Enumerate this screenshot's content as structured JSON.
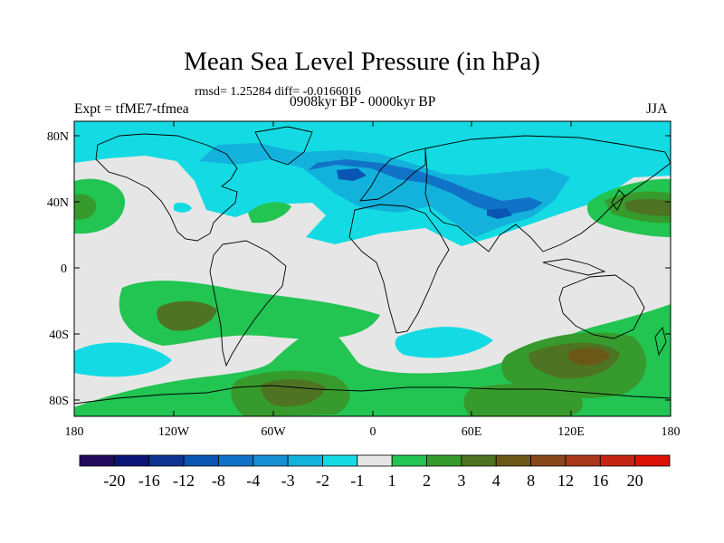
{
  "title": "Mean Sea Level Pressure (in hPa)",
  "stats": "rmsd= 1.25284 diff= -0.0166016",
  "period": "0908kyr BP - 0000kyr BP",
  "experiment": "Expt = tfME7-tfmea",
  "season": "JJA",
  "axes": {
    "lat_labels": [
      "80N",
      "40N",
      "0",
      "40S",
      "80S"
    ],
    "lon_labels": [
      "180",
      "120W",
      "60W",
      "0",
      "60E",
      "120E",
      "180"
    ]
  },
  "colorbar": {
    "labels": [
      "-20",
      "-16",
      "-12",
      "-8",
      "-4",
      "-3",
      "-2",
      "-1",
      "1",
      "2",
      "3",
      "4",
      "8",
      "12",
      "16",
      "20"
    ],
    "colors": [
      "#230a5c",
      "#0c1478",
      "#0e3391",
      "#0a54b3",
      "#1073c8",
      "#158fd4",
      "#12b2dc",
      "#14dbe3",
      "#e6e6e6",
      "#22c452",
      "#379a2c",
      "#4e7322",
      "#6b5817",
      "#88471b",
      "#a8381a",
      "#c42412",
      "#dc1208"
    ]
  },
  "colors": {
    "background_field": "#e6e6e6",
    "neg_light": "#14dbe3",
    "neg_mid": "#12b2dc",
    "neg_strong": "#1073c8",
    "neg_deep": "#0a54b3",
    "pos_light": "#22c452",
    "pos_mid": "#379a2c",
    "pos_strong": "#4e7322",
    "pos_deep": "#6b5817"
  }
}
